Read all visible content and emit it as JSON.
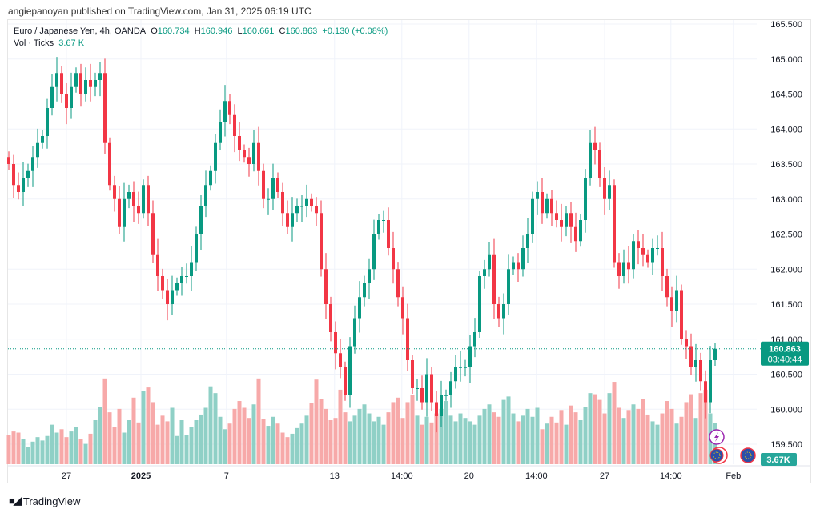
{
  "publisher_line": "angiepanoyan published on TradingView.com, Jan 31, 2025 06:19 UTC",
  "legend": {
    "symbol": "Euro / Japanese Yen, 4h, OANDA",
    "o_label": "O",
    "o": "160.734",
    "h_label": "H",
    "h": "160.946",
    "l_label": "L",
    "l": "160.661",
    "c_label": "C",
    "c": "160.863",
    "change": "+0.130 (+0.08%)",
    "vol_label": "Vol · Ticks",
    "vol_value": "3.67 K"
  },
  "price_badge": {
    "price": "160.863",
    "countdown": "03:40:44"
  },
  "volume_badge": "3.67K",
  "footer": {
    "brand": "TradingView"
  },
  "colors": {
    "up": "#089981",
    "down": "#f23645",
    "up_vol": "#8fd0c6",
    "down_vol": "#f7a9a9"
  },
  "chart_data": {
    "type": "candlestick",
    "title": "Euro / Japanese Yen, 4h, OANDA",
    "ylim": [
      159.5,
      165.5
    ],
    "y_ticks": [
      "165.500",
      "165.000",
      "164.500",
      "164.000",
      "163.500",
      "163.000",
      "162.500",
      "162.000",
      "161.500",
      "161.000",
      "160.500",
      "160.000",
      "159.500"
    ],
    "x_ticks": [
      {
        "label": "27",
        "index": 12,
        "bold": false
      },
      {
        "label": "2025",
        "index": 27.5,
        "bold": true
      },
      {
        "label": "7",
        "index": 45.3,
        "bold": false
      },
      {
        "label": "13",
        "index": 67.8,
        "bold": false
      },
      {
        "label": "14:00",
        "index": 81.8,
        "bold": false
      },
      {
        "label": "20",
        "index": 95.8,
        "bold": false
      },
      {
        "label": "14:00",
        "index": 109.8,
        "bold": false
      },
      {
        "label": "27",
        "index": 124,
        "bold": false
      },
      {
        "label": "14:00",
        "index": 137.8,
        "bold": false
      },
      {
        "label": "Feb",
        "index": 150.8,
        "bold": false
      }
    ],
    "last_price": 160.863,
    "open_first": 163.6,
    "closes": [
      163.5,
      163.2,
      163.1,
      163.3,
      163.4,
      163.6,
      163.8,
      163.9,
      164.3,
      164.6,
      164.8,
      164.5,
      164.3,
      164.6,
      164.8,
      164.5,
      164.7,
      164.6,
      164.7,
      164.8,
      163.8,
      163.2,
      163.0,
      162.6,
      163.0,
      163.1,
      162.9,
      162.8,
      163.2,
      162.8,
      162.2,
      161.9,
      161.7,
      161.5,
      161.7,
      161.8,
      161.9,
      161.9,
      162.1,
      162.5,
      162.9,
      163.2,
      163.4,
      163.8,
      164.1,
      164.4,
      164.2,
      163.9,
      163.7,
      163.6,
      163.5,
      163.8,
      163.4,
      163.0,
      163.0,
      163.3,
      163.1,
      162.8,
      162.6,
      162.8,
      162.9,
      162.9,
      163.0,
      162.9,
      162.8,
      162.0,
      161.5,
      161.1,
      160.8,
      160.6,
      160.2,
      160.9,
      161.3,
      161.6,
      161.8,
      162.0,
      162.5,
      162.7,
      162.7,
      162.3,
      162.0,
      161.6,
      161.3,
      160.7,
      160.3,
      160.3,
      160.1,
      160.5,
      160.1,
      159.9,
      160.2,
      160.2,
      160.4,
      160.6,
      160.6,
      160.6,
      160.9,
      161.1,
      161.9,
      162.0,
      162.2,
      161.5,
      161.3,
      161.5,
      162.0,
      162.1,
      162.0,
      162.3,
      162.5,
      163.0,
      163.1,
      162.8,
      163.0,
      162.8,
      162.7,
      162.6,
      162.8,
      162.6,
      162.4,
      162.7,
      163.3,
      163.8,
      163.7,
      163.3,
      163.0,
      163.2,
      162.1,
      161.9,
      162.1,
      162.0,
      162.4,
      162.3,
      162.2,
      162.1,
      162.3,
      162.3,
      161.9,
      161.6,
      161.4,
      161.7,
      161.0,
      160.9,
      160.6,
      160.7,
      160.4,
      160.1,
      160.7,
      160.863
    ],
    "volumes_k": [
      2.6,
      2.9,
      2.8,
      2.2,
      1.5,
      2.0,
      2.4,
      2.1,
      2.5,
      3.5,
      2.8,
      3.1,
      2.4,
      2.9,
      3.3,
      2.2,
      1.8,
      2.7,
      3.9,
      5.1,
      7.6,
      4.6,
      3.3,
      4.9,
      2.8,
      3.9,
      5.9,
      3.7,
      6.5,
      6.8,
      5.5,
      3.5,
      4.3,
      3.8,
      5.0,
      2.5,
      3.9,
      2.6,
      3.3,
      3.9,
      4.4,
      5.0,
      6.9,
      6.3,
      4.2,
      3.1,
      3.6,
      4.9,
      5.6,
      5.0,
      4.1,
      5.3,
      7.6,
      4.0,
      3.4,
      4.2,
      3.6,
      2.8,
      2.4,
      2.7,
      3.2,
      3.6,
      4.3,
      5.4,
      7.5,
      5.8,
      4.9,
      3.9,
      4.1,
      6.6,
      4.6,
      3.8,
      4.3,
      4.9,
      5.3,
      4.5,
      3.8,
      4.2,
      3.5,
      4.6,
      5.5,
      5.9,
      4.1,
      5.5,
      6.1,
      4.3,
      3.5,
      4.2,
      3.7,
      4.5,
      4.9,
      5.6,
      4.3,
      3.8,
      4.5,
      4.1,
      3.8,
      3.5,
      4.3,
      4.9,
      5.3,
      4.6,
      4.2,
      5.7,
      6.0,
      4.5,
      3.8,
      4.3,
      4.9,
      4.2,
      5.0,
      3.1,
      3.6,
      4.2,
      3.7,
      4.8,
      3.5,
      5.2,
      4.6,
      3.9,
      5.1,
      6.3,
      6.2,
      5.7,
      4.5,
      6.3,
      7.3,
      5.0,
      4.1,
      4.8,
      5.3,
      4.9,
      5.8,
      4.4,
      3.8,
      3.5,
      4.5,
      5.6,
      4.9,
      3.6,
      4.2,
      5.5,
      6.2,
      4.1,
      6.3,
      6.6,
      4.5,
      3.67
    ]
  }
}
